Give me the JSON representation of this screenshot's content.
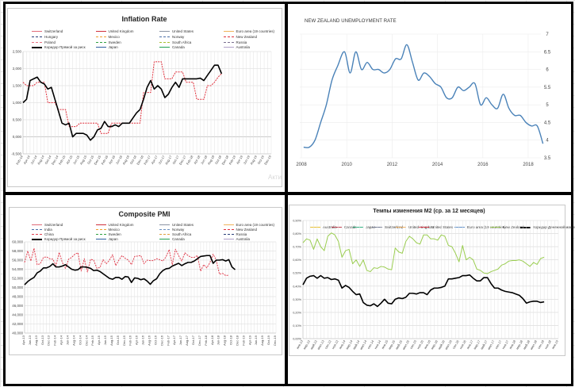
{
  "inflation": {
    "title": "Inflation Rate",
    "watermark": "Акти",
    "legend": [
      {
        "label": "Switzerland",
        "color": "#e06b78",
        "style": "solid"
      },
      {
        "label": "United Kingdom",
        "color": "#d0303c",
        "style": "solid"
      },
      {
        "label": "United States",
        "color": "#8a93a3",
        "style": "solid"
      },
      {
        "label": "Euro area (19 countries)",
        "color": "#f0b35a",
        "style": "solid"
      },
      {
        "label": "Hungary",
        "color": "#2a3f7a",
        "style": "dashed"
      },
      {
        "label": "Mexico",
        "color": "#f0a030",
        "style": "dashed"
      },
      {
        "label": "Norway",
        "color": "#4a6fa8",
        "style": "dashed"
      },
      {
        "label": "New Zealand",
        "color": "#e0303c",
        "style": "dashed"
      },
      {
        "label": "Poland",
        "color": "#e87080",
        "style": "dashed"
      },
      {
        "label": "Sweden",
        "color": "#30a040",
        "style": "dashed"
      },
      {
        "label": "South Africa",
        "color": "#a8c030",
        "style": "dashed"
      },
      {
        "label": "Russia",
        "color": "#7a6f90",
        "style": "dashed"
      },
      {
        "label": "Коридор Прямой за риск",
        "color": "#000000",
        "style": "solid"
      },
      {
        "label": "Japan",
        "color": "#2f5f9f",
        "style": "solid"
      },
      {
        "label": "Canada",
        "color": "#20a050",
        "style": "solid"
      },
      {
        "label": "Australia",
        "color": "#b0a0c8",
        "style": "solid"
      }
    ]
  },
  "unemployment": {
    "title": "NEW ZEALAND UNEMPLOYMENT RATE"
  },
  "pmi": {
    "title": "Composite PMI",
    "legend": [
      {
        "label": "Switzerland",
        "color": "#e06b78",
        "style": "solid"
      },
      {
        "label": "United Kingdom",
        "color": "#d0303c",
        "style": "solid"
      },
      {
        "label": "United States",
        "color": "#8a93a3",
        "style": "solid"
      },
      {
        "label": "Euro area (19 countries)",
        "color": "#f0b35a",
        "style": "solid"
      },
      {
        "label": "India",
        "color": "#4a6fa8",
        "style": "dashed"
      },
      {
        "label": "Mexico",
        "color": "#f0a030",
        "style": "dashed"
      },
      {
        "label": "Norway",
        "color": "#6a8fc0",
        "style": "dashed"
      },
      {
        "label": "New Zealand",
        "color": "#e0303c",
        "style": "dashed"
      },
      {
        "label": "China",
        "color": "#e04050",
        "style": "dashed"
      },
      {
        "label": "Sweden",
        "color": "#30a040",
        "style": "dashed"
      },
      {
        "label": "South Africa",
        "color": "#e0a040",
        "style": "dashed"
      },
      {
        "label": "Russia",
        "color": "#2a3f7a",
        "style": "dashed"
      },
      {
        "label": "Коридор Прямой за риск",
        "color": "#000000",
        "style": "solid"
      },
      {
        "label": "Japan",
        "color": "#2f5f9f",
        "style": "solid"
      },
      {
        "label": "Canada",
        "color": "#20a050",
        "style": "solid"
      },
      {
        "label": "Australia",
        "color": "#b0a0c8",
        "style": "solid"
      }
    ]
  },
  "m2": {
    "title": "Темпы изменения M2 (ср. за 12 месяцев)",
    "legend": [
      {
        "label": "Australia",
        "color": "#e8c030",
        "style": "solid"
      },
      {
        "label": "Canada",
        "color": "#c04050",
        "style": "solid"
      },
      {
        "label": "Japan",
        "color": "#30b080",
        "style": "solid"
      },
      {
        "label": "Switzerland",
        "color": "#707890",
        "style": "solid"
      },
      {
        "label": "United Kingdom",
        "color": "#f0b060",
        "style": "solid"
      },
      {
        "label": "United States",
        "color": "#e03040",
        "style": "solid"
      },
      {
        "label": "Euro area (19 countries)",
        "color": "#6090c8",
        "style": "solid"
      },
      {
        "label": "New Zealand",
        "color": "#9acd50",
        "style": "solid"
      },
      {
        "label": "Коридор Денежной массы",
        "color": "#000000",
        "style": "solid"
      }
    ]
  },
  "chart_data": [
    {
      "id": "inflation",
      "type": "line",
      "title": "Inflation Rate",
      "ylim": [
        -0.5,
        2.5
      ],
      "y_ticks": [
        "-0,500",
        "0,000",
        "0,500",
        "1,000",
        "1,500",
        "2,000",
        "2,500"
      ],
      "y_tick_values": [
        -0.5,
        0,
        0.5,
        1,
        1.5,
        2,
        2.5
      ],
      "x_ticks": [
        "Feb-14",
        "Apr-14",
        "Jun-14",
        "Aug-14",
        "Oct-14",
        "Dec-14",
        "Feb-15",
        "Apr-15",
        "Jun-15",
        "Aug-15",
        "Oct-15",
        "Dec-15",
        "Feb-16",
        "Apr-16",
        "Jun-16",
        "Aug-16",
        "Oct-16",
        "Dec-16",
        "Feb-17",
        "Apr-17",
        "Jun-17",
        "Aug-17",
        "Oct-17",
        "Dec-17",
        "Feb-18",
        "Apr-18",
        "Jun-18",
        "Aug-18",
        "Oct-18",
        "Dec-18",
        "Feb-19",
        "Apr-19",
        "Jun-19",
        "Aug-19",
        "Oct-19",
        "Dec-19"
      ],
      "x_start": "Feb-14",
      "x_step": "monthly",
      "grid": true,
      "legend_position": "top",
      "series": [
        {
          "name": "New Zealand",
          "color": "#e0303c",
          "style": "dashed",
          "values": [
            1.6,
            1.5,
            1.5,
            1.5,
            1.6,
            1.6,
            1.6,
            1.0,
            1.0,
            1.0,
            0.8,
            0.8,
            0.8,
            0.3,
            0.3,
            0.3,
            0.4,
            0.4,
            0.4,
            0.4,
            0.4,
            0.4,
            0.1,
            0.1,
            0.1,
            0.4,
            0.4,
            0.4,
            0.4,
            0.4,
            0.4,
            0.4,
            0.4,
            0.4,
            1.3,
            1.3,
            1.3,
            2.2,
            2.2,
            2.2,
            1.7,
            1.7,
            1.7,
            1.9,
            1.9,
            1.9,
            1.6,
            1.6,
            1.6,
            1.1,
            1.1,
            1.1,
            1.5,
            1.5,
            1.6,
            1.75,
            1.85
          ]
        },
        {
          "name": "Коридор Прямой за риск",
          "color": "#000000",
          "style": "solid",
          "values": [
            1.0,
            1.1,
            1.65,
            1.7,
            1.75,
            1.6,
            1.55,
            1.4,
            1.45,
            1.1,
            0.75,
            0.4,
            0.35,
            0.4,
            0.0,
            0.1,
            0.1,
            0.1,
            0.05,
            -0.1,
            0.0,
            0.2,
            0.25,
            0.45,
            0.3,
            0.3,
            0.35,
            0.3,
            0.4,
            0.4,
            0.4,
            0.55,
            0.7,
            0.8,
            1.1,
            1.45,
            1.65,
            1.4,
            1.5,
            1.4,
            1.15,
            1.25,
            1.45,
            1.6,
            1.45,
            1.7,
            1.7,
            1.7,
            1.7,
            1.7,
            1.72,
            1.65,
            1.8,
            1.95,
            2.1,
            2.1,
            1.85
          ]
        }
      ]
    },
    {
      "id": "unemployment",
      "type": "line",
      "title": "NEW ZEALAND UNEMPLOYMENT RATE",
      "xlim": [
        2008,
        2018.8
      ],
      "ylim": [
        3.5,
        7
      ],
      "x_ticks": [
        "2008",
        "2010",
        "2012",
        "2014",
        "2016",
        "2018"
      ],
      "x_tick_values": [
        2008,
        2010,
        2012,
        2014,
        2016,
        2018
      ],
      "y_ticks": [
        "3.5",
        "4",
        "4.5",
        "5",
        "5.5",
        "6",
        "6.5",
        "7"
      ],
      "y_tick_values": [
        3.5,
        4,
        4.5,
        5,
        5.5,
        6,
        6.5,
        7
      ],
      "grid": true,
      "series": [
        {
          "color": "#4a82b8",
          "x": [
            2008.1,
            2008.35,
            2008.6,
            2008.85,
            2009.1,
            2009.35,
            2009.6,
            2009.9,
            2010.15,
            2010.4,
            2010.65,
            2010.9,
            2011.15,
            2011.4,
            2011.65,
            2011.9,
            2012.15,
            2012.4,
            2012.65,
            2012.9,
            2013.15,
            2013.4,
            2013.65,
            2013.9,
            2014.15,
            2014.4,
            2014.65,
            2014.9,
            2015.15,
            2015.4,
            2015.65,
            2015.9,
            2016.15,
            2016.4,
            2016.65,
            2016.9,
            2017.15,
            2017.4,
            2017.65,
            2017.9,
            2018.15,
            2018.4,
            2018.65
          ],
          "values": [
            3.8,
            3.8,
            4.0,
            4.5,
            5.0,
            5.7,
            6.1,
            6.5,
            5.9,
            6.5,
            6.0,
            6.2,
            6.0,
            6.0,
            5.9,
            6.0,
            6.3,
            6.3,
            6.7,
            6.2,
            5.7,
            5.9,
            5.8,
            5.6,
            5.5,
            5.2,
            5.2,
            5.5,
            5.4,
            5.5,
            5.6,
            5.0,
            5.2,
            5.0,
            4.9,
            5.3,
            4.9,
            4.7,
            4.7,
            4.5,
            4.4,
            4.4,
            3.9
          ]
        }
      ]
    },
    {
      "id": "pmi",
      "type": "line",
      "title": "Composite PMI",
      "ylim": [
        40,
        60
      ],
      "y_ticks": [
        "40,000",
        "42,000",
        "44,000",
        "46,000",
        "48,000",
        "50,000",
        "52,000",
        "54,000",
        "56,000",
        "58,000",
        "60,000"
      ],
      "y_tick_values": [
        40,
        42,
        44,
        46,
        48,
        50,
        52,
        54,
        56,
        58,
        60
      ],
      "x_ticks": [
        "Apr-13",
        "Jun-13",
        "Aug-13",
        "Oct-13",
        "Dec-13",
        "Feb-14",
        "Apr-14",
        "Jun-14",
        "Aug-14",
        "Oct-14",
        "Dec-14",
        "Feb-15",
        "Apr-15",
        "Jun-15",
        "Aug-15",
        "Oct-15",
        "Dec-15",
        "Feb-16",
        "Apr-16",
        "Jun-16",
        "Aug-16",
        "Oct-16",
        "Dec-16",
        "Feb-17",
        "Apr-17",
        "Jun-17",
        "Aug-17",
        "Oct-17",
        "Dec-17",
        "Feb-18",
        "Apr-18",
        "Jun-18",
        "Aug-18",
        "Oct-18",
        "Dec-18",
        "Feb-19",
        "Apr-19",
        "Jun-19",
        "Aug-19",
        "Oct-19",
        "Dec-19"
      ],
      "x_start": "Apr-13",
      "x_step": "monthly",
      "grid": true,
      "legend_position": "top",
      "series": [
        {
          "name": "China",
          "color": "#e04050",
          "style": "dashed",
          "values": [
            55.5,
            58.0,
            55.8,
            58.6,
            55.0,
            55.2,
            56.6,
            56.7,
            56.3,
            56.2,
            54.8,
            57.7,
            55.5,
            54.2,
            56.2,
            56.6,
            57.3,
            57.6,
            53.6,
            56.3,
            53.4,
            56.2,
            56.0,
            54.2,
            54.4,
            56.1,
            55.2,
            56.0,
            57.2,
            54.8,
            56.0,
            57.0,
            56.4,
            56.0,
            55.0,
            56.8,
            56.9,
            57.0,
            55.2,
            56.0,
            55.9,
            55.9,
            56.3,
            56.1,
            55.8,
            56.7,
            58.3,
            55.0,
            58.4,
            57.0,
            55.8,
            57.6,
            57.0,
            56.6,
            56.6,
            57.0,
            53.6,
            55.0,
            54.3,
            55.5,
            57.3,
            56.0,
            52.9,
            53.1,
            52.6,
            52.7
          ]
        },
        {
          "name": "Коридор Прямой за риск",
          "color": "#000000",
          "style": "solid",
          "values": [
            50.6,
            51.3,
            51.8,
            52.2,
            53.2,
            53.6,
            54.3,
            54.3,
            54.6,
            55.2,
            54.5,
            54.5,
            54.7,
            55.0,
            54.5,
            54.0,
            53.8,
            53.9,
            54.5,
            54.5,
            54.4,
            54.2,
            53.7,
            53.8,
            53.5,
            53.0,
            52.5,
            52.0,
            51.8,
            52.2,
            52.2,
            51.8,
            52.4,
            52.3,
            51.1,
            52.1,
            52.0,
            51.7,
            51.9,
            51.4,
            50.7,
            51.5,
            51.9,
            53.0,
            53.7,
            54.1,
            54.2,
            54.7,
            55.0,
            55.3,
            54.8,
            55.2,
            55.5,
            55.5,
            55.8,
            56.3,
            56.8,
            56.9,
            57.0,
            57.0,
            55.3,
            56.0,
            56.0,
            56.1,
            55.8,
            56.1,
            54.5,
            53.9
          ]
        }
      ]
    },
    {
      "id": "m2",
      "type": "line",
      "title": "Темпы изменения M2 (ср. за 12 месяцев)",
      "ylim": [
        0,
        0.9
      ],
      "y_ticks": [
        "0,00%",
        "0,10%",
        "0,20%",
        "0,30%",
        "0,40%",
        "0,50%",
        "0,60%",
        "0,70%",
        "0,80%",
        "0,90%"
      ],
      "y_tick_values": [
        0,
        0.1,
        0.2,
        0.3,
        0.4,
        0.5,
        0.6,
        0.7,
        0.8,
        0.9
      ],
      "x_ticks": [
        "янв.13",
        "мар.13",
        "май.13",
        "июл.13",
        "сен.13",
        "ноя.13",
        "янв.14",
        "мар.14",
        "май.14",
        "июл.14",
        "сен.14",
        "ноя.14",
        "янв.15",
        "мар.15",
        "май.15",
        "июл.15",
        "сен.15",
        "ноя.15",
        "янв.16",
        "мар.16",
        "май.16",
        "июл.16",
        "сен.16",
        "ноя.16",
        "янв.17",
        "мар.17",
        "май.17",
        "июл.17",
        "сен.17",
        "ноя.17",
        "янв.18",
        "мар.18",
        "май.18",
        "июл.18",
        "сен.18",
        "ноя.18",
        "янв.19"
      ],
      "x_start": "янв.13",
      "x_step": "monthly",
      "grid": true,
      "legend_position": "top",
      "series": [
        {
          "name": "New Zealand",
          "color": "#9acd50",
          "style": "solid",
          "values": [
            0.73,
            0.76,
            0.75,
            0.68,
            0.76,
            0.7,
            0.67,
            0.78,
            0.805,
            0.79,
            0.74,
            0.62,
            0.67,
            0.68,
            0.57,
            0.6,
            0.55,
            0.6,
            0.52,
            0.51,
            0.54,
            0.535,
            0.55,
            0.545,
            0.53,
            0.525,
            0.69,
            0.66,
            0.65,
            0.74,
            0.78,
            0.76,
            0.73,
            0.72,
            0.79,
            0.79,
            0.76,
            0.76,
            0.75,
            0.79,
            0.78,
            0.71,
            0.7,
            0.65,
            0.585,
            0.71,
            0.6,
            0.62,
            0.6,
            0.53,
            0.52,
            0.5,
            0.495,
            0.51,
            0.52,
            0.53,
            0.56,
            0.57,
            0.59,
            0.595,
            0.595,
            0.6,
            0.59,
            0.57,
            0.55,
            0.58,
            0.565,
            0.61,
            0.62
          ]
        },
        {
          "name": "Коридор Денежной массы",
          "color": "#000000",
          "style": "solid",
          "values": [
            0.41,
            0.46,
            0.475,
            0.48,
            0.46,
            0.48,
            0.46,
            0.465,
            0.45,
            0.455,
            0.445,
            0.385,
            0.405,
            0.39,
            0.36,
            0.335,
            0.34,
            0.275,
            0.255,
            0.25,
            0.265,
            0.245,
            0.27,
            0.3,
            0.27,
            0.265,
            0.3,
            0.31,
            0.305,
            0.315,
            0.345,
            0.345,
            0.34,
            0.35,
            0.35,
            0.335,
            0.37,
            0.385,
            0.385,
            0.39,
            0.4,
            0.455,
            0.455,
            0.46,
            0.465,
            0.48,
            0.48,
            0.485,
            0.46,
            0.44,
            0.44,
            0.465,
            0.465,
            0.42,
            0.385,
            0.385,
            0.37,
            0.36,
            0.355,
            0.35,
            0.34,
            0.33,
            0.305,
            0.27,
            0.28,
            0.285,
            0.285,
            0.275,
            0.28
          ]
        }
      ]
    }
  ]
}
